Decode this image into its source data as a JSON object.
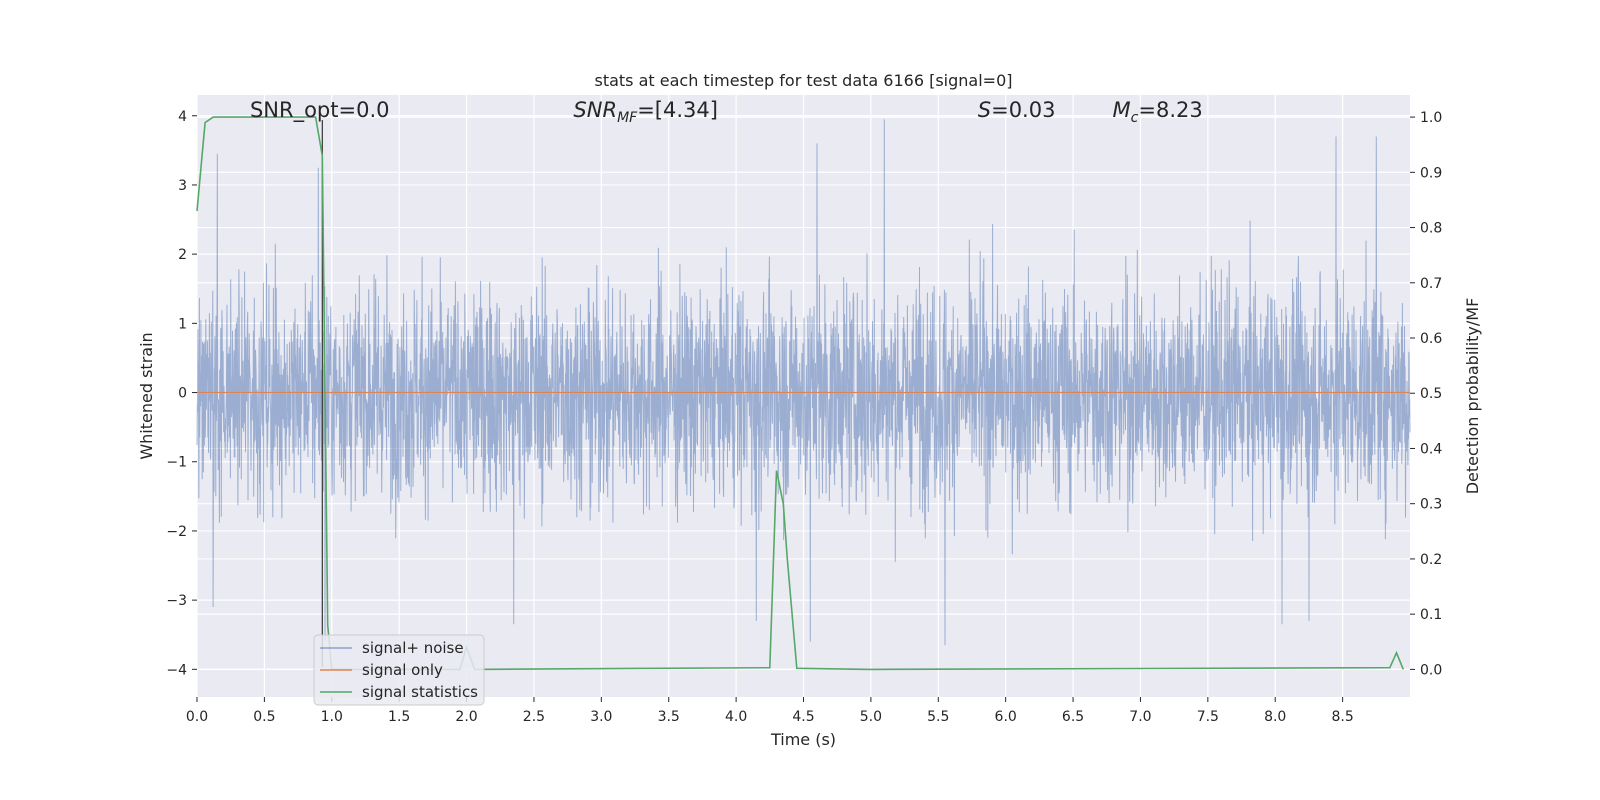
{
  "chart_data": {
    "type": "line",
    "title": "stats at each timestep for test data 6166 [signal=0]",
    "xlabel": "Time (s)",
    "ylabel": "Whitened strain",
    "ylabel_right": "Detection probability/MF",
    "xlim": [
      0.0,
      9.0
    ],
    "ylim": [
      -4.4,
      4.3
    ],
    "ylim_right": [
      -0.05,
      1.04
    ],
    "grid": true,
    "legend_position": "lower-left",
    "x_ticks": [
      0.0,
      0.5,
      1.0,
      1.5,
      2.0,
      2.5,
      3.0,
      3.5,
      4.0,
      4.5,
      5.0,
      5.5,
      6.0,
      6.5,
      7.0,
      7.5,
      8.0,
      8.5
    ],
    "x_tick_labels": [
      "0.0",
      "0.5",
      "1.0",
      "1.5",
      "2.0",
      "2.5",
      "3.0",
      "3.5",
      "4.0",
      "4.5",
      "5.0",
      "5.5",
      "6.0",
      "6.5",
      "7.0",
      "7.5",
      "8.0",
      "8.5"
    ],
    "y_ticks": [
      -4,
      -3,
      -2,
      -1,
      0,
      1,
      2,
      3,
      4
    ],
    "y_tick_labels": [
      "−4",
      "−3",
      "−2",
      "−1",
      "0",
      "1",
      "2",
      "3",
      "4"
    ],
    "y_ticks_right": [
      0.0,
      0.1,
      0.2,
      0.3,
      0.4,
      0.5,
      0.6,
      0.7,
      0.8,
      0.9,
      1.0
    ],
    "y_tick_labels_right": [
      "0.0",
      "0.1",
      "0.2",
      "0.3",
      "0.4",
      "0.5",
      "0.6",
      "0.7",
      "0.8",
      "0.9",
      "1.0"
    ],
    "annotations": [
      {
        "text": "SNR_opt=0.0",
        "x": 0.2,
        "y": 4.1,
        "italic": false
      },
      {
        "text": "SNR_MF=[4.34]",
        "x": 2.6,
        "y": 4.1,
        "italic": true
      },
      {
        "text": "S=0.03",
        "x": 5.6,
        "y": 4.1,
        "italic": true
      },
      {
        "text": "M_c=8.23",
        "x": 6.6,
        "y": 4.1,
        "italic": true
      }
    ],
    "vertical_marker": {
      "x": 0.93,
      "color": "#444444"
    },
    "series": [
      {
        "name": "signal+ noise",
        "color": "#4c72b0",
        "axis": "left",
        "description_kind": "noise",
        "points": 4000,
        "amplitude_typical": 1.5,
        "extremes": [
          {
            "x": 0.15,
            "y": 3.45
          },
          {
            "x": 0.12,
            "y": -3.1
          },
          {
            "x": 0.9,
            "y": 3.25
          },
          {
            "x": 0.95,
            "y": -3.6
          },
          {
            "x": 2.35,
            "y": -3.35
          },
          {
            "x": 4.15,
            "y": -3.3
          },
          {
            "x": 4.55,
            "y": -3.6
          },
          {
            "x": 4.6,
            "y": 3.6
          },
          {
            "x": 5.1,
            "y": 3.95
          },
          {
            "x": 5.55,
            "y": -3.65
          },
          {
            "x": 8.05,
            "y": -3.35
          },
          {
            "x": 8.45,
            "y": 3.7
          },
          {
            "x": 8.75,
            "y": 3.7
          },
          {
            "x": 8.25,
            "y": -3.3
          }
        ]
      },
      {
        "name": "signal only",
        "color": "#dd8452",
        "axis": "left",
        "x": [
          0.0,
          9.0
        ],
        "values": [
          0.0,
          0.0
        ]
      },
      {
        "name": "signal statistics",
        "color": "#55a868",
        "axis": "right",
        "x": [
          0.0,
          0.06,
          0.12,
          0.2,
          0.5,
          0.88,
          0.93,
          0.97,
          1.0,
          1.95,
          2.0,
          2.06,
          4.25,
          4.3,
          4.35,
          4.38,
          4.45,
          5.0,
          8.85,
          8.9,
          8.95
        ],
        "values": [
          0.83,
          0.99,
          1.0,
          1.0,
          1.0,
          1.0,
          0.93,
          0.08,
          0.0,
          0.0,
          0.04,
          0.0,
          0.003,
          0.36,
          0.3,
          0.2,
          0.002,
          0.0,
          0.003,
          0.03,
          0.0
        ]
      }
    ]
  }
}
